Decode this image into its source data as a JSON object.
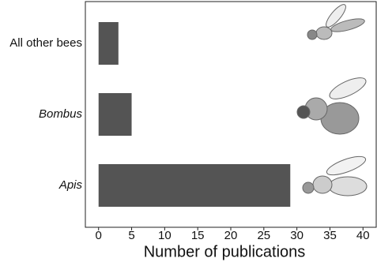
{
  "chart_data": {
    "type": "bar",
    "orientation": "horizontal",
    "categories": [
      "All other bees",
      "Bombus",
      "Apis"
    ],
    "category_style": [
      "normal",
      "italic",
      "italic"
    ],
    "values": [
      3,
      5,
      29
    ],
    "color": "#545454",
    "x_label": "Number of publications",
    "xlim": [
      -2,
      42
    ],
    "xticks": [
      0,
      5,
      10,
      15,
      20,
      25,
      30,
      35,
      40
    ],
    "grid": false
  }
}
